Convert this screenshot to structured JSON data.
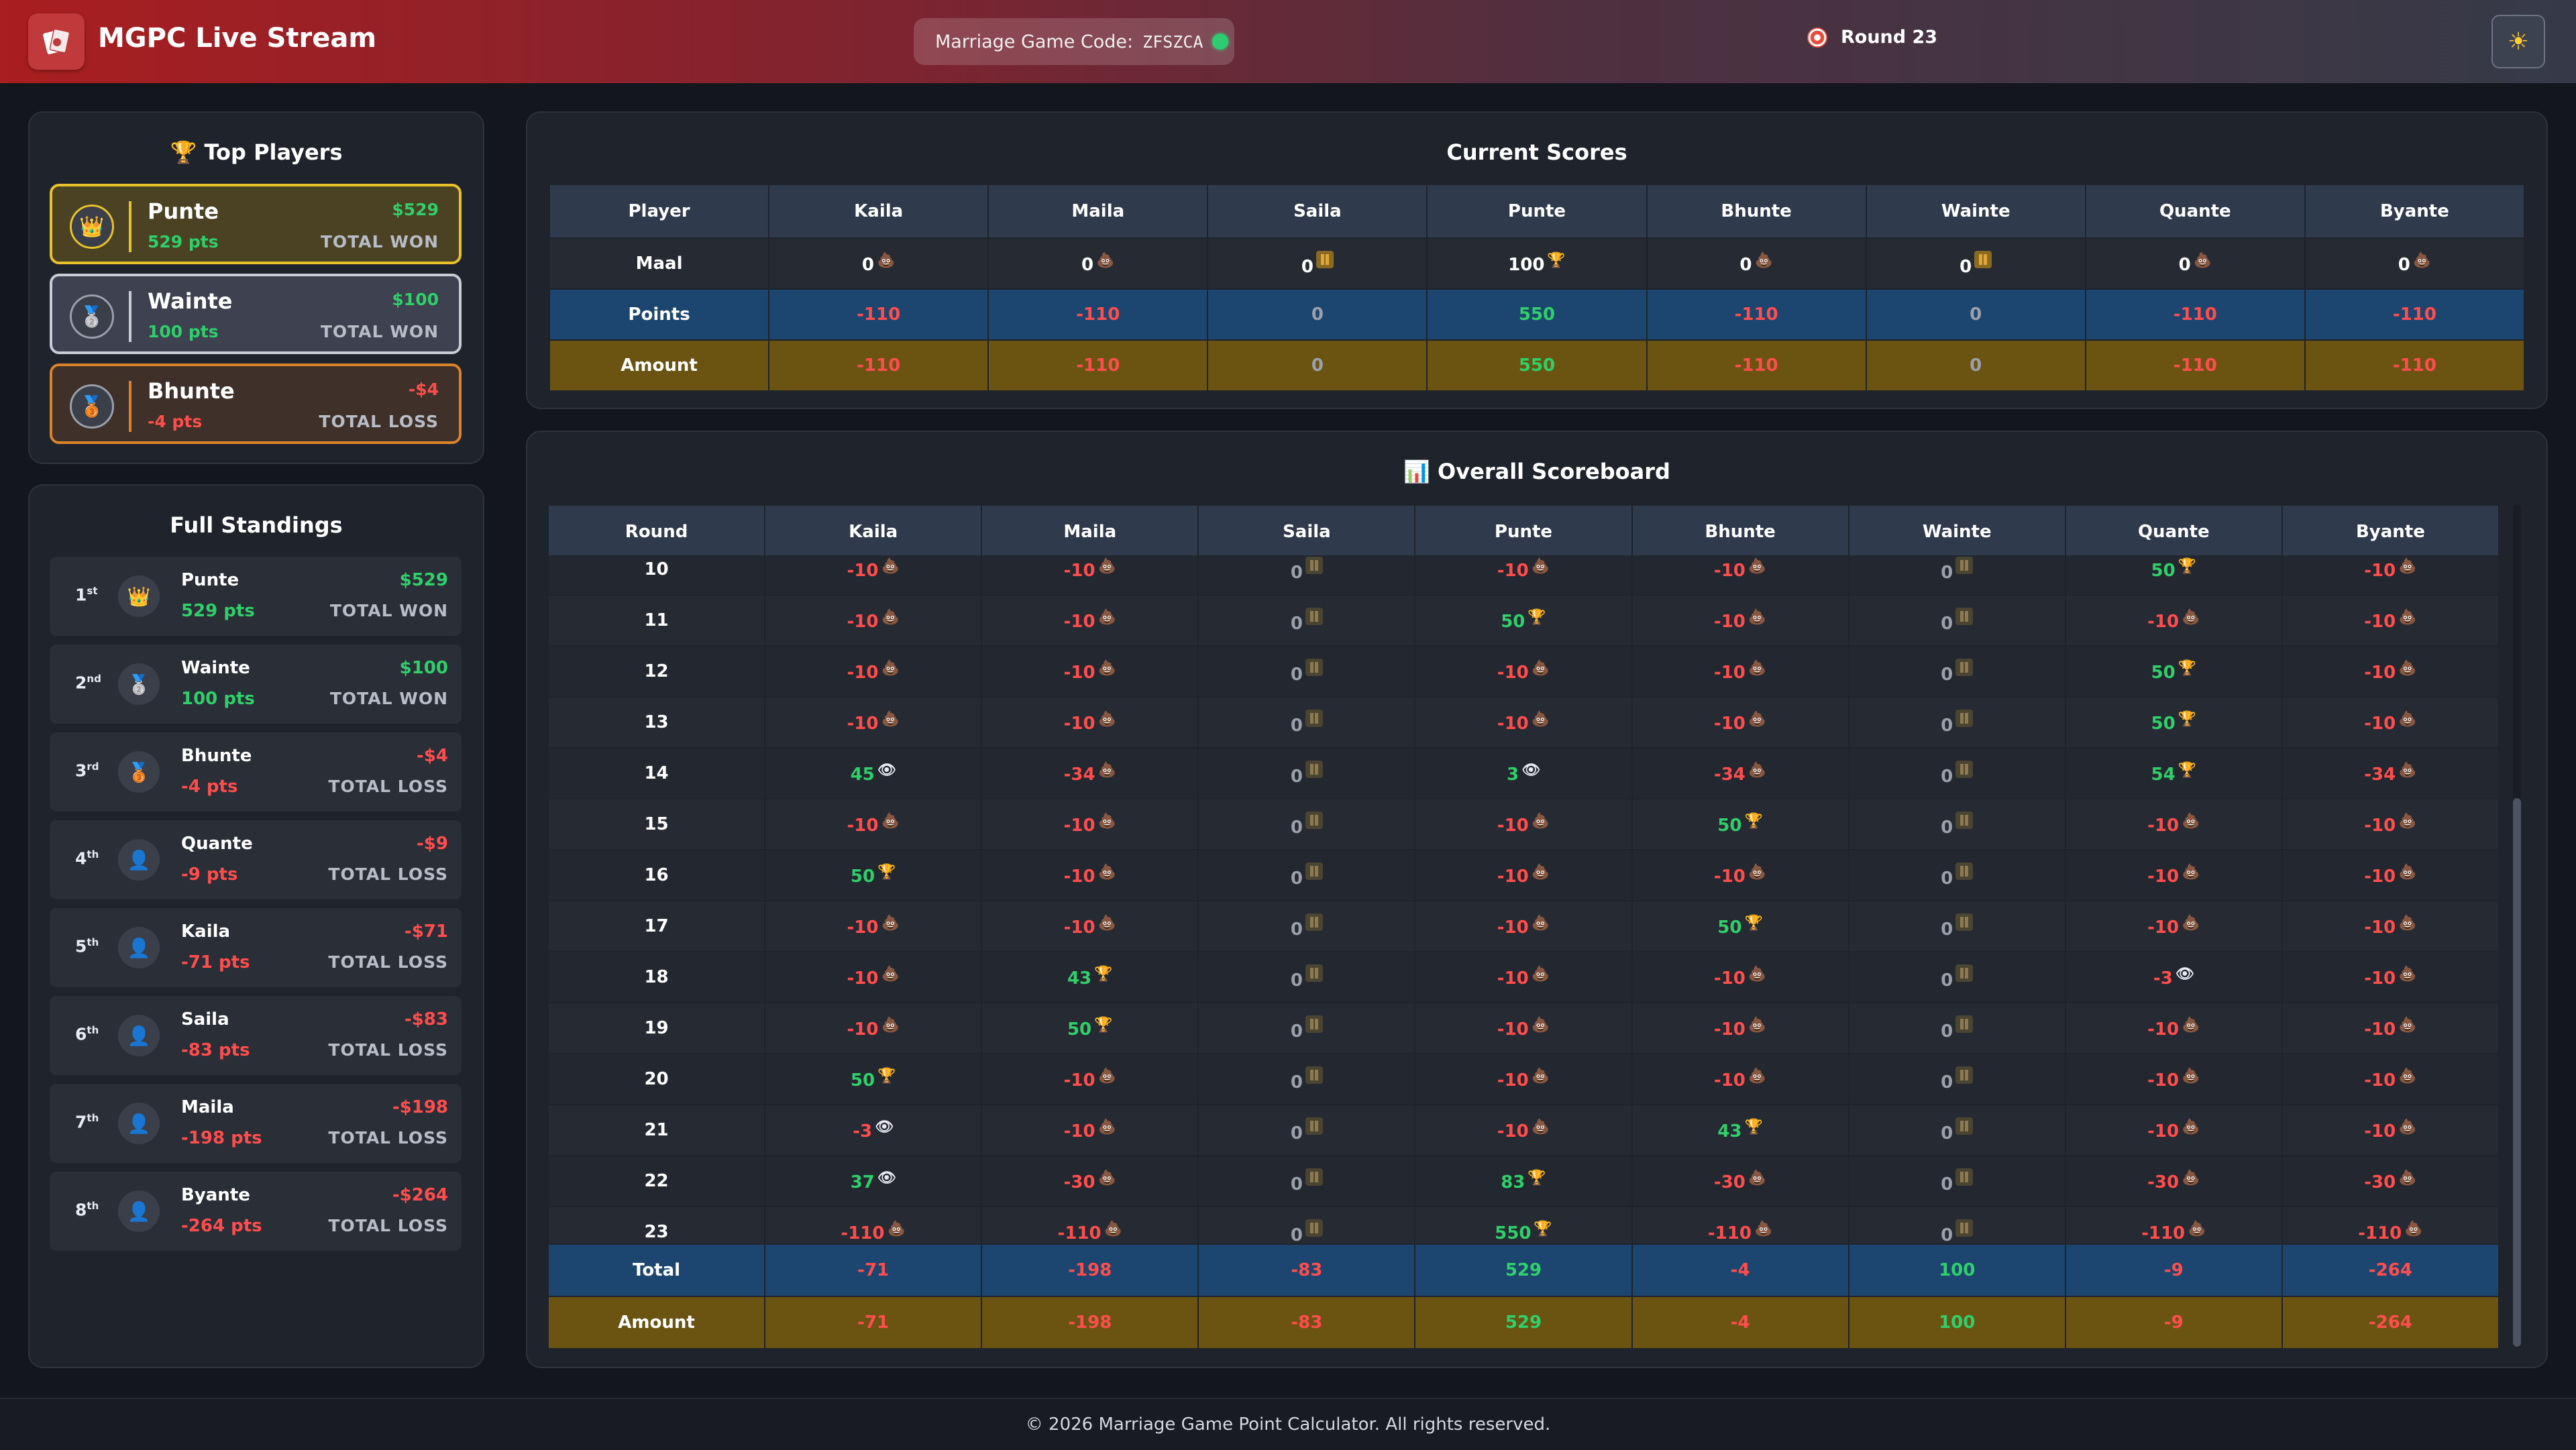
{
  "header": {
    "title": "MGPC Live Stream",
    "code_label": "Marriage Game Code:",
    "code_value": "ZFSZCA",
    "round_label": "Round 23"
  },
  "top_players": {
    "title": "Top Players",
    "cards": [
      {
        "name": "Punte",
        "pts": "529 pts",
        "amount": "$529",
        "label": "TOTAL WON",
        "medal": "crown-icon",
        "sign": "pos"
      },
      {
        "name": "Wainte",
        "pts": "100 pts",
        "amount": "$100",
        "label": "TOTAL WON",
        "medal": "silver-medal-icon",
        "sign": "pos"
      },
      {
        "name": "Bhunte",
        "pts": "-4 pts",
        "amount": "-$4",
        "label": "TOTAL LOSS",
        "medal": "bronze-medal-icon",
        "sign": "neg"
      }
    ]
  },
  "standings": {
    "title": "Full Standings",
    "rows": [
      {
        "rank": "1",
        "suffix": "st",
        "name": "Punte",
        "pts": "529 pts",
        "amount": "$529",
        "label": "TOTAL WON",
        "sign": "pos",
        "icon": "crown-icon"
      },
      {
        "rank": "2",
        "suffix": "nd",
        "name": "Wainte",
        "pts": "100 pts",
        "amount": "$100",
        "label": "TOTAL WON",
        "sign": "pos",
        "icon": "silver-medal-icon"
      },
      {
        "rank": "3",
        "suffix": "rd",
        "name": "Bhunte",
        "pts": "-4 pts",
        "amount": "-$4",
        "label": "TOTAL LOSS",
        "sign": "neg",
        "icon": "bronze-medal-icon"
      },
      {
        "rank": "4",
        "suffix": "th",
        "name": "Quante",
        "pts": "-9 pts",
        "amount": "-$9",
        "label": "TOTAL LOSS",
        "sign": "neg",
        "icon": "user-icon"
      },
      {
        "rank": "5",
        "suffix": "th",
        "name": "Kaila",
        "pts": "-71 pts",
        "amount": "-$71",
        "label": "TOTAL LOSS",
        "sign": "neg",
        "icon": "user-icon"
      },
      {
        "rank": "6",
        "suffix": "th",
        "name": "Saila",
        "pts": "-83 pts",
        "amount": "-$83",
        "label": "TOTAL LOSS",
        "sign": "neg",
        "icon": "user-icon"
      },
      {
        "rank": "7",
        "suffix": "th",
        "name": "Maila",
        "pts": "-198 pts",
        "amount": "-$198",
        "label": "TOTAL LOSS",
        "sign": "neg",
        "icon": "user-icon"
      },
      {
        "rank": "8",
        "suffix": "th",
        "name": "Byante",
        "pts": "-264 pts",
        "amount": "-$264",
        "label": "TOTAL LOSS",
        "sign": "neg",
        "icon": "user-icon"
      }
    ]
  },
  "current_scores": {
    "title": "Current Scores",
    "player_header": "Player",
    "players": [
      "Kaila",
      "Maila",
      "Saila",
      "Punte",
      "Bhunte",
      "Wainte",
      "Quante",
      "Byante"
    ],
    "maal_label": "Maal",
    "maal": [
      {
        "v": "0",
        "icon": "poop-icon"
      },
      {
        "v": "0",
        "icon": "poop-icon"
      },
      {
        "v": "0",
        "icon": "pause-icon"
      },
      {
        "v": "100",
        "icon": "trophy-icon"
      },
      {
        "v": "0",
        "icon": "poop-icon"
      },
      {
        "v": "0",
        "icon": "pause-icon"
      },
      {
        "v": "0",
        "icon": "poop-icon"
      },
      {
        "v": "0",
        "icon": "poop-icon"
      }
    ],
    "points_label": "Points",
    "points": [
      "-110",
      "-110",
      "0",
      "550",
      "-110",
      "0",
      "-110",
      "-110"
    ],
    "amount_label": "Amount",
    "amount": [
      "-110",
      "-110",
      "0",
      "550",
      "-110",
      "0",
      "-110",
      "-110"
    ]
  },
  "overall": {
    "title": "Overall Scoreboard",
    "round_header": "Round",
    "players": [
      "Kaila",
      "Maila",
      "Saila",
      "Punte",
      "Bhunte",
      "Wainte",
      "Quante",
      "Byante"
    ],
    "rounds": [
      {
        "r": "10",
        "cells": [
          [
            "-10",
            "poop-icon"
          ],
          [
            "-10",
            "poop-icon"
          ],
          [
            "0",
            "pause-icon"
          ],
          [
            "-10",
            "poop-icon"
          ],
          [
            "-10",
            "poop-icon"
          ],
          [
            "0",
            "pause-icon"
          ],
          [
            "50",
            "trophy-icon"
          ],
          [
            "-10",
            "poop-icon"
          ]
        ]
      },
      {
        "r": "11",
        "cells": [
          [
            "-10",
            "poop-icon"
          ],
          [
            "-10",
            "poop-icon"
          ],
          [
            "0",
            "pause-icon"
          ],
          [
            "50",
            "trophy-icon"
          ],
          [
            "-10",
            "poop-icon"
          ],
          [
            "0",
            "pause-icon"
          ],
          [
            "-10",
            "poop-icon"
          ],
          [
            "-10",
            "poop-icon"
          ]
        ]
      },
      {
        "r": "12",
        "cells": [
          [
            "-10",
            "poop-icon"
          ],
          [
            "-10",
            "poop-icon"
          ],
          [
            "0",
            "pause-icon"
          ],
          [
            "-10",
            "poop-icon"
          ],
          [
            "-10",
            "poop-icon"
          ],
          [
            "0",
            "pause-icon"
          ],
          [
            "50",
            "trophy-icon"
          ],
          [
            "-10",
            "poop-icon"
          ]
        ]
      },
      {
        "r": "13",
        "cells": [
          [
            "-10",
            "poop-icon"
          ],
          [
            "-10",
            "poop-icon"
          ],
          [
            "0",
            "pause-icon"
          ],
          [
            "-10",
            "poop-icon"
          ],
          [
            "-10",
            "poop-icon"
          ],
          [
            "0",
            "pause-icon"
          ],
          [
            "50",
            "trophy-icon"
          ],
          [
            "-10",
            "poop-icon"
          ]
        ]
      },
      {
        "r": "14",
        "cells": [
          [
            "45",
            "eye-icon"
          ],
          [
            "-34",
            "poop-icon"
          ],
          [
            "0",
            "pause-icon"
          ],
          [
            "3",
            "eye-icon"
          ],
          [
            "-34",
            "poop-icon"
          ],
          [
            "0",
            "pause-icon"
          ],
          [
            "54",
            "trophy-icon"
          ],
          [
            "-34",
            "poop-icon"
          ]
        ]
      },
      {
        "r": "15",
        "cells": [
          [
            "-10",
            "poop-icon"
          ],
          [
            "-10",
            "poop-icon"
          ],
          [
            "0",
            "pause-icon"
          ],
          [
            "-10",
            "poop-icon"
          ],
          [
            "50",
            "trophy-icon"
          ],
          [
            "0",
            "pause-icon"
          ],
          [
            "-10",
            "poop-icon"
          ],
          [
            "-10",
            "poop-icon"
          ]
        ]
      },
      {
        "r": "16",
        "cells": [
          [
            "50",
            "trophy-icon"
          ],
          [
            "-10",
            "poop-icon"
          ],
          [
            "0",
            "pause-icon"
          ],
          [
            "-10",
            "poop-icon"
          ],
          [
            "-10",
            "poop-icon"
          ],
          [
            "0",
            "pause-icon"
          ],
          [
            "-10",
            "poop-icon"
          ],
          [
            "-10",
            "poop-icon"
          ]
        ]
      },
      {
        "r": "17",
        "cells": [
          [
            "-10",
            "poop-icon"
          ],
          [
            "-10",
            "poop-icon"
          ],
          [
            "0",
            "pause-icon"
          ],
          [
            "-10",
            "poop-icon"
          ],
          [
            "50",
            "trophy-icon"
          ],
          [
            "0",
            "pause-icon"
          ],
          [
            "-10",
            "poop-icon"
          ],
          [
            "-10",
            "poop-icon"
          ]
        ]
      },
      {
        "r": "18",
        "cells": [
          [
            "-10",
            "poop-icon"
          ],
          [
            "43",
            "trophy-icon"
          ],
          [
            "0",
            "pause-icon"
          ],
          [
            "-10",
            "poop-icon"
          ],
          [
            "-10",
            "poop-icon"
          ],
          [
            "0",
            "pause-icon"
          ],
          [
            "-3",
            "eye-icon"
          ],
          [
            "-10",
            "poop-icon"
          ]
        ]
      },
      {
        "r": "19",
        "cells": [
          [
            "-10",
            "poop-icon"
          ],
          [
            "50",
            "trophy-icon"
          ],
          [
            "0",
            "pause-icon"
          ],
          [
            "-10",
            "poop-icon"
          ],
          [
            "-10",
            "poop-icon"
          ],
          [
            "0",
            "pause-icon"
          ],
          [
            "-10",
            "poop-icon"
          ],
          [
            "-10",
            "poop-icon"
          ]
        ]
      },
      {
        "r": "20",
        "cells": [
          [
            "50",
            "trophy-icon"
          ],
          [
            "-10",
            "poop-icon"
          ],
          [
            "0",
            "pause-icon"
          ],
          [
            "-10",
            "poop-icon"
          ],
          [
            "-10",
            "poop-icon"
          ],
          [
            "0",
            "pause-icon"
          ],
          [
            "-10",
            "poop-icon"
          ],
          [
            "-10",
            "poop-icon"
          ]
        ]
      },
      {
        "r": "21",
        "cells": [
          [
            "-3",
            "eye-icon"
          ],
          [
            "-10",
            "poop-icon"
          ],
          [
            "0",
            "pause-icon"
          ],
          [
            "-10",
            "poop-icon"
          ],
          [
            "43",
            "trophy-icon"
          ],
          [
            "0",
            "pause-icon"
          ],
          [
            "-10",
            "poop-icon"
          ],
          [
            "-10",
            "poop-icon"
          ]
        ]
      },
      {
        "r": "22",
        "cells": [
          [
            "37",
            "eye-icon"
          ],
          [
            "-30",
            "poop-icon"
          ],
          [
            "0",
            "pause-icon"
          ],
          [
            "83",
            "trophy-icon"
          ],
          [
            "-30",
            "poop-icon"
          ],
          [
            "0",
            "pause-icon"
          ],
          [
            "-30",
            "poop-icon"
          ],
          [
            "-30",
            "poop-icon"
          ]
        ]
      },
      {
        "r": "23",
        "cells": [
          [
            "-110",
            "poop-icon"
          ],
          [
            "-110",
            "poop-icon"
          ],
          [
            "0",
            "pause-icon"
          ],
          [
            "550",
            "trophy-icon"
          ],
          [
            "-110",
            "poop-icon"
          ],
          [
            "0",
            "pause-icon"
          ],
          [
            "-110",
            "poop-icon"
          ],
          [
            "-110",
            "poop-icon"
          ]
        ]
      }
    ],
    "total_label": "Total",
    "totals": [
      "-71",
      "-198",
      "-83",
      "529",
      "-4",
      "100",
      "-9",
      "-264"
    ],
    "amount_label": "Amount",
    "amounts": [
      "-71",
      "-198",
      "-83",
      "529",
      "-4",
      "100",
      "-9",
      "-264"
    ]
  },
  "footer": {
    "text": "© 2026 Marriage Game Point Calculator. All rights reserved."
  },
  "colors": {
    "positive": "#2fcf6a",
    "negative": "#ff4d4d",
    "gold": "#e8c22a",
    "silver": "#c9ccd2",
    "bronze": "#d9832c",
    "points_row": "#1c4670",
    "amount_row": "#6b5412"
  }
}
